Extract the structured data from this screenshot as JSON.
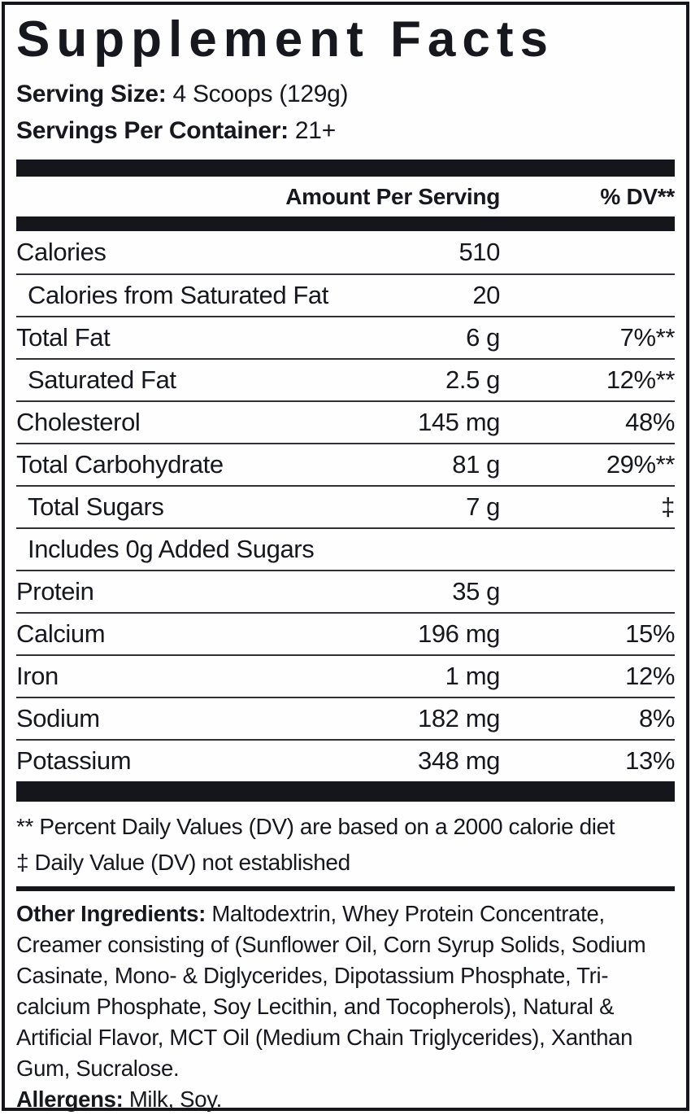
{
  "label": {
    "title": "Supplement Facts",
    "serving_size_label": "Serving Size:",
    "serving_size_value": "4 Scoops (129g)",
    "servings_per_container_label": "Servings Per Container:",
    "servings_per_container_value": "21+",
    "header": {
      "amount": "Amount Per Serving",
      "dv": "% DV**"
    },
    "rows": [
      {
        "name": "Calories",
        "amount": "510",
        "dv": ""
      },
      {
        "name": "Calories from Saturated Fat",
        "amount": "20",
        "dv": ""
      },
      {
        "name": "Total Fat",
        "amount": "6 g",
        "dv": "7%**"
      },
      {
        "name": "Saturated Fat",
        "amount": "2.5 g",
        "dv": "12%**"
      },
      {
        "name": "Cholesterol",
        "amount": "145 mg",
        "dv": "48%"
      },
      {
        "name": "Total Carbohydrate",
        "amount": "81 g",
        "dv": "29%**"
      },
      {
        "name": "Total Sugars",
        "amount": "7 g",
        "dv": "‡"
      },
      {
        "name": "Includes 0g Added Sugars",
        "amount": "",
        "dv": ""
      },
      {
        "name": "Protein",
        "amount": "35 g",
        "dv": ""
      },
      {
        "name": "Calcium",
        "amount": "196 mg",
        "dv": "15%"
      },
      {
        "name": "Iron",
        "amount": "1 mg",
        "dv": "12%"
      },
      {
        "name": "Sodium",
        "amount": "182 mg",
        "dv": "8%"
      },
      {
        "name": "Potassium",
        "amount": "348 mg",
        "dv": "13%"
      }
    ],
    "footnotes": [
      "** Percent Daily Values (DV) are based on a 2000 calorie diet",
      "‡ Daily Value (DV) not established"
    ],
    "other_ingredients_label": "Other Ingredients:",
    "other_ingredients_text": "Maltodextrin, Whey Protein Concentrate, Creamer consisting of (Sunflower Oil, Corn Syrup Solids, Sodium Casinate, Mono- & Diglycerides, Dipotassium Phosphate, Tri-calcium Phosphate, Soy Lecithin, and Tocopherols), Natural & Artificial Flavor, MCT Oil (Medium Chain Triglycerides), Xanthan Gum, Sucralose.",
    "allergens_label": "Allergens:",
    "allergens_value": "Milk, Soy.",
    "colors": {
      "text": "#16181e",
      "bar": "#14161c",
      "divider": "#2f3137",
      "background": "#ffffff"
    }
  }
}
